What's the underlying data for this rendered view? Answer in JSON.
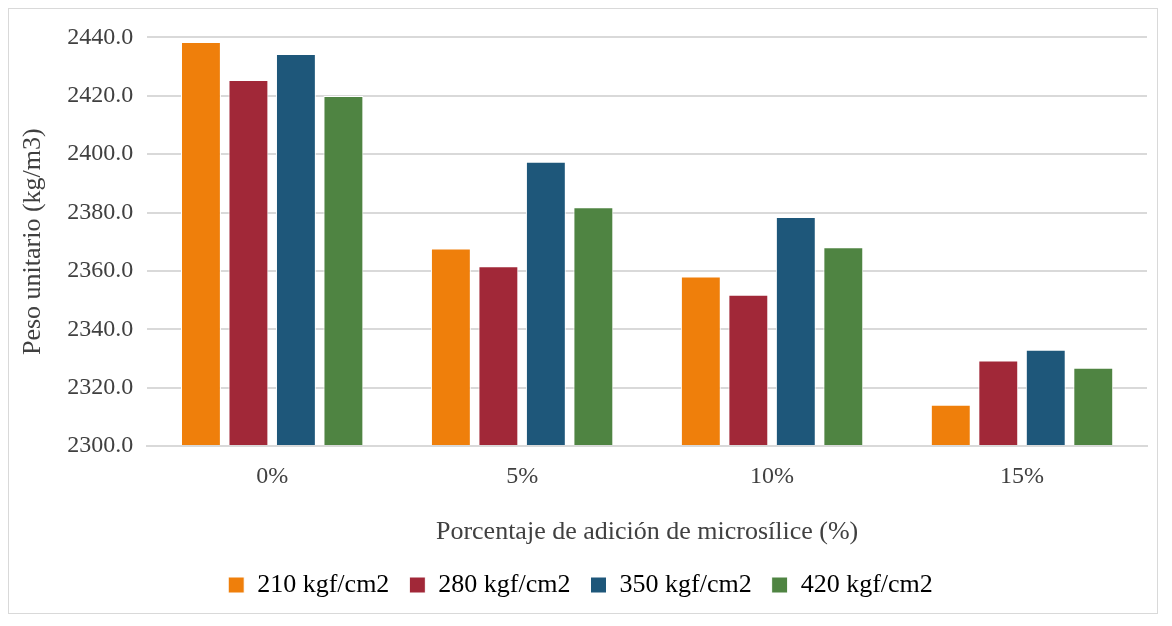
{
  "chart_data": {
    "type": "bar",
    "xlabel": "Porcentaje de adición de microsílice (%)",
    "ylabel": "Peso unitario (kg/m3)",
    "categories": [
      "0%",
      "5%",
      "10%",
      "15%"
    ],
    "series": [
      {
        "name": "210 kgf/cm2",
        "color": "#ef7f0b",
        "values": [
          2438.4,
          2367.7,
          2358.1,
          2314.1
        ]
      },
      {
        "name": "280 kgf/cm2",
        "color": "#a12838",
        "values": [
          2425.4,
          2361.6,
          2351.8,
          2329.3
        ]
      },
      {
        "name": "350 kgf/cm2",
        "color": "#1e577a",
        "values": [
          2434.3,
          2397.4,
          2378.5,
          2333.0
        ]
      },
      {
        "name": "420 kgf/cm2",
        "color": "#4f8442",
        "values": [
          2419.9,
          2381.8,
          2368.1,
          2326.8
        ]
      }
    ],
    "ylim": [
      2300,
      2440
    ],
    "yticks": [
      {
        "value": 2300,
        "label": "2300.0"
      },
      {
        "value": 2320,
        "label": "2320.0"
      },
      {
        "value": 2340,
        "label": "2340.0"
      },
      {
        "value": 2360,
        "label": "2360.0"
      },
      {
        "value": 2380,
        "label": "2380.0"
      },
      {
        "value": 2400,
        "label": "2400.0"
      },
      {
        "value": 2420,
        "label": "2420.0"
      },
      {
        "value": 2440,
        "label": "2440.0"
      }
    ],
    "grid": "y",
    "legend": "bottom"
  }
}
